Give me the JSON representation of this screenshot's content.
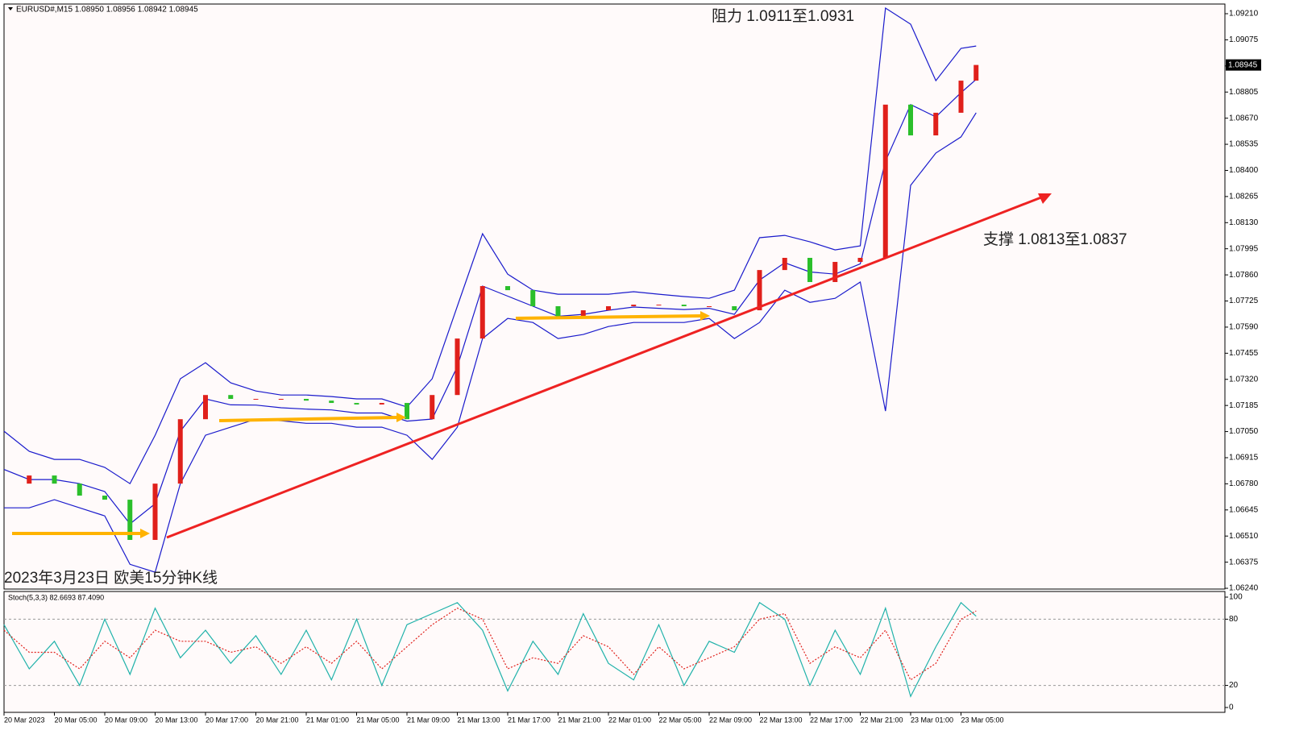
{
  "chart_data": [
    {
      "type": "candlestick",
      "header": "EURUSD#,M15  1.08950 1.08956 1.08942 1.08945",
      "annotations": [
        "阻力 1.0911至1.0931",
        "支撑 1.0813至1.0837",
        "2023年3月23日 欧美15分钟K线"
      ],
      "x": [
        0,
        2,
        4,
        6,
        8,
        10,
        12,
        14,
        16,
        18,
        20,
        22,
        24,
        26,
        28,
        30,
        32,
        34,
        36,
        38,
        40,
        42,
        44,
        46,
        48,
        50,
        52,
        54,
        56,
        58,
        60,
        62,
        64,
        66,
        68,
        70,
        72,
        74,
        76,
        77.2
      ],
      "values": [
        1.06781,
        1.06823,
        1.06781,
        1.06719,
        1.06698,
        1.0649,
        1.06781,
        1.07114,
        1.07239,
        1.07219,
        1.07219,
        1.07219,
        1.0721,
        1.07198,
        1.0719,
        1.07198,
        1.07114,
        1.07239,
        1.07531,
        1.07802,
        1.07781,
        1.07698,
        1.07635,
        1.07677,
        1.07698,
        1.07706,
        1.07706,
        1.07698,
        1.07698,
        1.07677,
        1.07885,
        1.07948,
        1.07823,
        1.07927,
        1.07948,
        1.0874,
        1.08581,
        1.08698,
        1.08864,
        1.08945
      ],
      "color_up": "#e0201b",
      "color_down": "#2bbf2b",
      "bands": {
        "color": "#1a1acc",
        "upper": [
          1.07052,
          1.06948,
          1.06906,
          1.06906,
          1.06865,
          1.06781,
          1.07031,
          1.07323,
          1.07406,
          1.07302,
          1.0726,
          1.07239,
          1.07239,
          1.07231,
          1.07219,
          1.07219,
          1.07177,
          1.07323,
          1.07698,
          1.08073,
          1.07864,
          1.07781,
          1.0776,
          1.0776,
          1.0776,
          1.07773,
          1.0776,
          1.07748,
          1.07739,
          1.07781,
          1.08052,
          1.08064,
          1.08031,
          1.07989,
          1.0801,
          1.09239,
          1.09156,
          1.08864,
          1.09031,
          1.09043
        ],
        "middle": [
          1.06854,
          1.06802,
          1.06802,
          1.06781,
          1.0674,
          1.06573,
          1.06677,
          1.07052,
          1.07219,
          1.07188,
          1.07187,
          1.07173,
          1.07166,
          1.07162,
          1.07146,
          1.07146,
          1.07104,
          1.07115,
          1.07386,
          1.07802,
          1.0775,
          1.07698,
          1.07646,
          1.07656,
          1.07677,
          1.07694,
          1.07687,
          1.07681,
          1.07687,
          1.07656,
          1.07833,
          1.07923,
          1.07875,
          1.07864,
          1.07917,
          1.08448,
          1.0874,
          1.08677,
          1.08802,
          1.0887
        ],
        "lower": [
          1.06656,
          1.06656,
          1.06698,
          1.06656,
          1.06614,
          1.06364,
          1.06323,
          1.06781,
          1.07031,
          1.07073,
          1.07114,
          1.07106,
          1.07093,
          1.07093,
          1.07073,
          1.07073,
          1.07031,
          1.06906,
          1.07073,
          1.07531,
          1.07635,
          1.07614,
          1.07531,
          1.07552,
          1.07593,
          1.07614,
          1.07614,
          1.07614,
          1.07635,
          1.07531,
          1.07614,
          1.07781,
          1.07718,
          1.07739,
          1.07823,
          1.07156,
          1.08323,
          1.0849,
          1.08573,
          1.08698
        ]
      },
      "xlim": [
        0,
        96.96
      ],
      "xticks": [
        {
          "value": 0,
          "label": "20 Mar 2023"
        },
        {
          "value": 4,
          "label": "20 Mar 05:00"
        },
        {
          "value": 8,
          "label": "20 Mar 09:00"
        },
        {
          "value": 12,
          "label": "20 Mar 13:00"
        },
        {
          "value": 16,
          "label": "20 Mar 17:00"
        },
        {
          "value": 20,
          "label": "20 Mar 21:00"
        },
        {
          "value": 24,
          "label": "21 Mar 01:00"
        },
        {
          "value": 28,
          "label": "21 Mar 05:00"
        },
        {
          "value": 32,
          "label": "21 Mar 09:00"
        },
        {
          "value": 36,
          "label": "21 Mar 13:00"
        },
        {
          "value": 40,
          "label": "21 Mar 17:00"
        },
        {
          "value": 44,
          "label": "21 Mar 21:00"
        },
        {
          "value": 48,
          "label": "22 Mar 01:00"
        },
        {
          "value": 52,
          "label": "22 Mar 05:00"
        },
        {
          "value": 56,
          "label": "22 Mar 09:00"
        },
        {
          "value": 60,
          "label": "22 Mar 13:00"
        },
        {
          "value": 64,
          "label": "22 Mar 17:00"
        },
        {
          "value": 68,
          "label": "22 Mar 21:00"
        },
        {
          "value": 72,
          "label": "23 Mar 01:00"
        },
        {
          "value": 76,
          "label": "23 Mar 05:00"
        }
      ],
      "ylim": [
        1.06236,
        1.0926
      ],
      "yticks": [
        {
          "value": 1.0624,
          "label": "1.06240"
        },
        {
          "value": 1.06375,
          "label": "1.06375"
        },
        {
          "value": 1.0651,
          "label": "1.06510"
        },
        {
          "value": 1.06645,
          "label": "1.06645"
        },
        {
          "value": 1.0678,
          "label": "1.06780"
        },
        {
          "value": 1.06915,
          "label": "1.06915"
        },
        {
          "value": 1.0705,
          "label": "1.07050"
        },
        {
          "value": 1.07185,
          "label": "1.07185"
        },
        {
          "value": 1.0732,
          "label": "1.07320"
        },
        {
          "value": 1.07455,
          "label": "1.07455"
        },
        {
          "value": 1.0759,
          "label": "1.07590"
        },
        {
          "value": 1.07725,
          "label": "1.07725"
        },
        {
          "value": 1.0786,
          "label": "1.07860"
        },
        {
          "value": 1.07995,
          "label": "1.07995"
        },
        {
          "value": 1.0813,
          "label": "1.08130"
        },
        {
          "value": 1.08265,
          "label": "1.08265"
        },
        {
          "value": 1.084,
          "label": "1.08400"
        },
        {
          "value": 1.08535,
          "label": "1.08535"
        },
        {
          "value": 1.0867,
          "label": "1.08670"
        },
        {
          "value": 1.08805,
          "label": "1.08805"
        },
        {
          "value": 1.0894,
          "label": "1.08940"
        },
        {
          "value": 1.09075,
          "label": "1.09075"
        },
        {
          "value": 1.0921,
          "label": "1.09210"
        }
      ]
    },
    {
      "type": "line",
      "label": "Stoch(5,3,3) 82.6693 87.4090",
      "x": [
        0,
        2,
        4,
        6,
        8,
        10,
        12,
        14,
        16,
        18,
        20,
        22,
        24,
        26,
        28,
        30,
        32,
        34,
        36,
        38,
        40,
        42,
        44,
        46,
        48,
        50,
        52,
        54,
        56,
        58,
        60,
        62,
        64,
        66,
        68,
        70,
        72,
        74,
        76,
        77.2
      ],
      "k": {
        "color": "#20b2aa",
        "values": [
          75,
          35,
          60,
          20,
          80,
          30,
          90,
          45,
          70,
          40,
          65,
          30,
          70,
          25,
          80,
          20,
          75,
          85,
          95,
          70,
          15,
          60,
          30,
          85,
          40,
          25,
          75,
          20,
          60,
          50,
          95,
          80,
          20,
          70,
          30,
          90,
          10,
          55,
          95,
          82.6693
        ]
      },
      "d": {
        "color": "#e0201b",
        "values": [
          70,
          50,
          50,
          35,
          60,
          45,
          70,
          60,
          60,
          50,
          55,
          40,
          55,
          40,
          60,
          35,
          55,
          75,
          90,
          80,
          35,
          45,
          40,
          65,
          55,
          30,
          55,
          35,
          45,
          55,
          80,
          85,
          40,
          55,
          45,
          70,
          25,
          40,
          80,
          87.409
        ]
      },
      "xlim": [
        0,
        96.96
      ],
      "ylim": [
        -4.4,
        105.1
      ],
      "yticks": [
        0,
        20,
        80,
        100
      ]
    }
  ]
}
